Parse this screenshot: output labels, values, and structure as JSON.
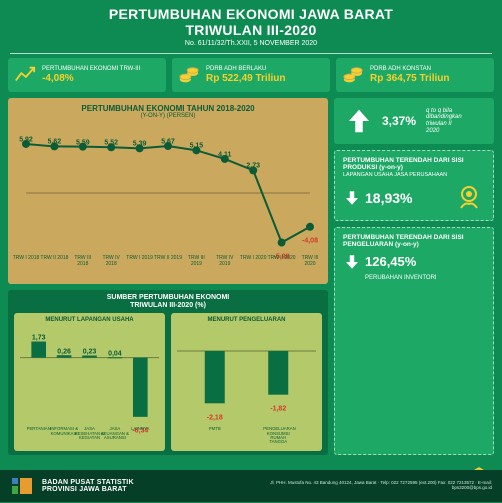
{
  "colors": {
    "bg": "#0d8b52",
    "panel": "#1ea866",
    "chartbg": "#caa85e",
    "dark": "#0a6e43",
    "lime": "#b4c96a",
    "accent": "#f6d02e",
    "footer": "#063f28",
    "text_dark": "#0b5b37",
    "neg": "#d4392a",
    "line": "#0b5b37",
    "pos_val": "#0b5b37"
  },
  "header": {
    "title_l1": "PERTUMBUHAN EKONOMI JAWA BARAT",
    "title_l2": "TRIWULAN III-2020",
    "sub": "No. 61/11/32/Th.XXII, 5 NOVEMBER 2020"
  },
  "top": [
    {
      "label": "PERTUMBUHAN EKONOMI TRW-III",
      "value": "-4,08%",
      "icon": "trend"
    },
    {
      "label": "PDRB ADH BERLAKU",
      "value": "Rp 522,49 Triliun",
      "icon": "coins"
    },
    {
      "label": "PDRB ADH KONSTAN",
      "value": "Rp 364,75 Triliun",
      "icon": "coins"
    }
  ],
  "chart": {
    "title": "PERTUMBUHAN EKONOMI TAHUN 2018-2020",
    "subtitle": "(Y-ON-Y) (PERSEN)",
    "type": "line",
    "categories": [
      "TRW I 2018",
      "TRW II 2018",
      "TRW III 2018",
      "TRW IV 2018",
      "TRW I 2019",
      "TRW II 2019",
      "TRW III 2019",
      "TRW IV 2019",
      "TRW I 2020",
      "TRW II 2020",
      "TRW III 2020"
    ],
    "values": [
      5.92,
      5.62,
      5.59,
      5.52,
      5.39,
      5.67,
      5.15,
      4.11,
      2.73,
      -5.98,
      -4.08
    ],
    "ylim": [
      -7,
      7
    ],
    "line_color": "#0b5b37",
    "marker": "circle",
    "marker_size": 4,
    "neg_color": "#d4392a",
    "pos_color": "#0b5b37",
    "label_fontsize": 7
  },
  "sources": {
    "title_l1": "SUMBER PERTUMBUHAN EKONOMI",
    "title_l2": "TRIWULAN III-2020 (%)",
    "left": {
      "title": "MENURUT LAPANGAN USAHA",
      "type": "bar",
      "categories": [
        "PERTANIAN",
        "INFORMASI & KOMUNIKASI",
        "JASA KESEHATAN & KEGIATAN",
        "JASA KEUANGAN & ASURANSI",
        "LAINNYA"
      ],
      "values": [
        1.73,
        0.26,
        0.23,
        0.04,
        -6.34
      ],
      "ylim": [
        -7,
        2
      ],
      "bar_colors": [
        "#0a6e43",
        "#0a6e43",
        "#0a6e43",
        "#0a6e43",
        "#0a6e43"
      ],
      "val_color_pos": "#0b5b37",
      "val_color_neg": "#d4392a"
    },
    "right": {
      "title": "MENURUT PENGELUARAN",
      "type": "bar",
      "categories": [
        "PMTB",
        "PENGELUARAN KONSUMSI RUMAH TANGGA"
      ],
      "values": [
        -2.18,
        -1.82
      ],
      "ylim": [
        -3,
        0.5
      ],
      "bar_colors": [
        "#0a6e43",
        "#0a6e43"
      ],
      "val_color_neg": "#d4392a"
    }
  },
  "qoq": {
    "value": "3,37%",
    "desc_l1": "q to q bila",
    "desc_l2": "dibandingkan",
    "desc_l3": "triwulan II",
    "desc_l4": "2020"
  },
  "low_prod": {
    "title": "PERTUMBUHAN TERENDAH DARI SISI PRODUKSI (y-on-y)",
    "sub": "LAPANGAN USAHA JASA PERUSAHAAN",
    "value": "18,93%",
    "icon": "gear-hand"
  },
  "low_exp": {
    "title": "PERTUMBUHAN TERENDAH DARI SISI PENGELUARAN (y-on-y)",
    "value": "126,45%",
    "unit": "PERUBAHAN INVENTORI",
    "icon": "warehouse"
  },
  "footer": {
    "org_l1": "BADAN PUSAT STATISTIK",
    "org_l2": "PROVINSI JAWA BARAT",
    "addr": "Jl. PHH. Mustofa No. 43 Bandung 40124, Jawa Barat · Telp: 022 7272595 (ext.200) Fax: 022 7213572 · E-mail: bps3200@bps.go.id"
  }
}
